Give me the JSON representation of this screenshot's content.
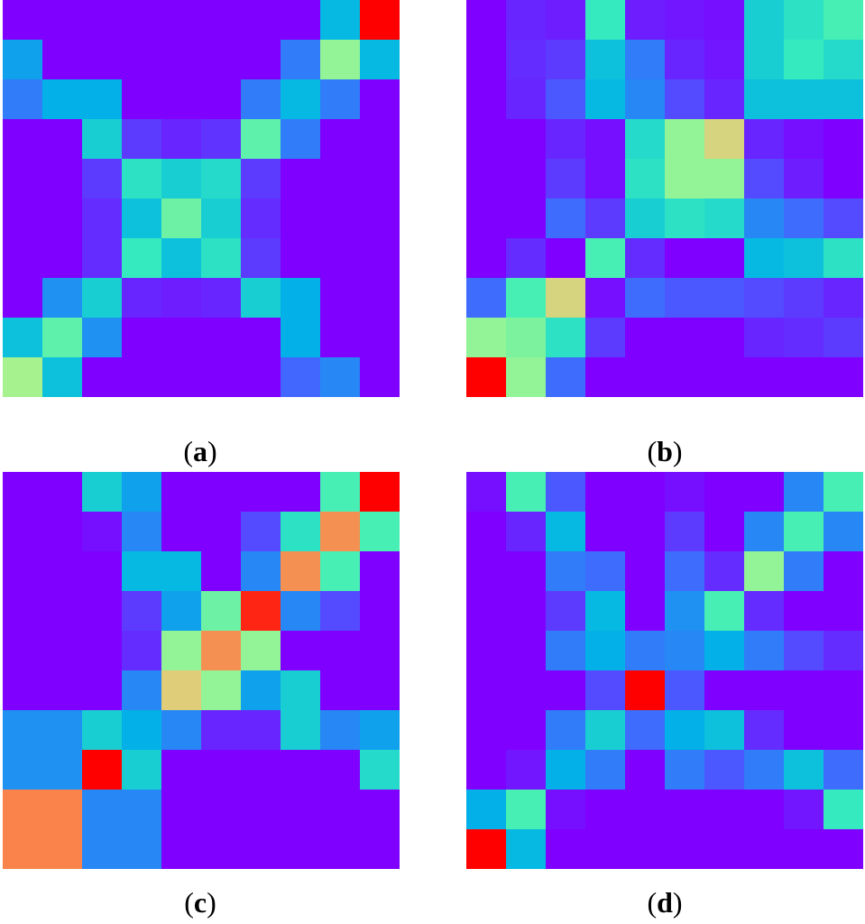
{
  "colormap": [
    "#7f00ff",
    "#4169ff",
    "#00b3e6",
    "#38eebb",
    "#a2f58f",
    "#e7c978",
    "#ff6a3a",
    "#ff0000"
  ],
  "chart_data": [
    {
      "type": "heatmap",
      "panel": "a",
      "caption": {
        "open": "(",
        "letter": "a",
        "close": ")"
      },
      "values": [
        [
          0.0,
          0.0,
          0.0,
          0.0,
          0.0,
          0.0,
          0.0,
          0.0,
          0.3,
          1.0
        ],
        [
          0.25,
          0.0,
          0.0,
          0.0,
          0.0,
          0.0,
          0.0,
          0.18,
          0.55,
          0.3
        ],
        [
          0.18,
          0.28,
          0.28,
          0.0,
          0.0,
          0.0,
          0.18,
          0.3,
          0.18,
          0.0
        ],
        [
          0.0,
          0.0,
          0.35,
          0.08,
          0.05,
          0.07,
          0.48,
          0.18,
          0.0,
          0.0
        ],
        [
          0.0,
          0.0,
          0.08,
          0.4,
          0.35,
          0.38,
          0.08,
          0.0,
          0.0,
          0.0
        ],
        [
          0.0,
          0.0,
          0.06,
          0.32,
          0.5,
          0.35,
          0.06,
          0.0,
          0.0,
          0.0
        ],
        [
          0.0,
          0.0,
          0.06,
          0.42,
          0.32,
          0.4,
          0.08,
          0.0,
          0.0,
          0.0
        ],
        [
          0.0,
          0.22,
          0.35,
          0.05,
          0.04,
          0.05,
          0.35,
          0.28,
          0.0,
          0.0
        ],
        [
          0.32,
          0.48,
          0.22,
          0.0,
          0.0,
          0.0,
          0.0,
          0.28,
          0.0,
          0.0
        ],
        [
          0.58,
          0.32,
          0.0,
          0.0,
          0.0,
          0.0,
          0.0,
          0.14,
          0.2,
          0.0
        ]
      ]
    },
    {
      "type": "heatmap",
      "panel": "b",
      "caption": {
        "open": "(",
        "letter": "b",
        "close": ")"
      },
      "values": [
        [
          0.0,
          0.05,
          0.04,
          0.42,
          0.04,
          0.03,
          0.02,
          0.35,
          0.4,
          0.45
        ],
        [
          0.0,
          0.06,
          0.08,
          0.32,
          0.18,
          0.05,
          0.03,
          0.35,
          0.42,
          0.38
        ],
        [
          0.0,
          0.05,
          0.12,
          0.3,
          0.2,
          0.1,
          0.05,
          0.32,
          0.32,
          0.32
        ],
        [
          0.0,
          0.0,
          0.05,
          0.02,
          0.38,
          0.55,
          0.68,
          0.05,
          0.02,
          0.0
        ],
        [
          0.0,
          0.0,
          0.08,
          0.02,
          0.4,
          0.55,
          0.55,
          0.1,
          0.04,
          0.0
        ],
        [
          0.0,
          0.0,
          0.15,
          0.08,
          0.35,
          0.4,
          0.38,
          0.2,
          0.15,
          0.1
        ],
        [
          0.0,
          0.06,
          0.0,
          0.45,
          0.06,
          0.0,
          0.0,
          0.3,
          0.32,
          0.4
        ],
        [
          0.15,
          0.45,
          0.68,
          0.02,
          0.15,
          0.12,
          0.12,
          0.1,
          0.08,
          0.05
        ],
        [
          0.55,
          0.52,
          0.4,
          0.08,
          0.0,
          0.0,
          0.0,
          0.05,
          0.06,
          0.08
        ],
        [
          1.0,
          0.55,
          0.15,
          0.0,
          0.0,
          0.0,
          0.0,
          0.0,
          0.0,
          0.0
        ]
      ]
    },
    {
      "type": "heatmap",
      "panel": "c",
      "caption": {
        "open": "(",
        "letter": "c",
        "close": ")"
      },
      "values": [
        [
          0.0,
          0.0,
          0.35,
          0.25,
          0.0,
          0.0,
          0.0,
          0.0,
          0.45,
          1.0
        ],
        [
          0.0,
          0.0,
          0.02,
          0.2,
          0.0,
          0.0,
          0.1,
          0.4,
          0.8,
          0.45
        ],
        [
          0.0,
          0.0,
          0.0,
          0.3,
          0.3,
          0.0,
          0.2,
          0.8,
          0.45,
          0.0
        ],
        [
          0.0,
          0.0,
          0.0,
          0.08,
          0.25,
          0.5,
          0.95,
          0.2,
          0.1,
          0.0
        ],
        [
          0.0,
          0.0,
          0.0,
          0.06,
          0.55,
          0.8,
          0.55,
          0.0,
          0.0,
          0.0
        ],
        [
          0.0,
          0.0,
          0.0,
          0.2,
          0.7,
          0.55,
          0.25,
          0.35,
          0.0,
          0.0
        ],
        [
          0.22,
          0.22,
          0.35,
          0.28,
          0.2,
          0.05,
          0.05,
          0.35,
          0.2,
          0.25
        ],
        [
          0.22,
          0.22,
          1.0,
          0.35,
          0.0,
          0.0,
          0.0,
          0.0,
          0.0,
          0.38
        ],
        [
          0.82,
          0.82,
          0.2,
          0.2,
          0.0,
          0.0,
          0.0,
          0.0,
          0.0,
          0.0
        ],
        [
          0.82,
          0.82,
          0.2,
          0.2,
          0.0,
          0.0,
          0.0,
          0.0,
          0.0,
          0.0
        ]
      ]
    },
    {
      "type": "heatmap",
      "panel": "d",
      "caption": {
        "open": "(",
        "letter": "d",
        "close": ")"
      },
      "values": [
        [
          0.02,
          0.45,
          0.12,
          0.0,
          0.0,
          0.02,
          0.0,
          0.0,
          0.2,
          0.45
        ],
        [
          0.0,
          0.05,
          0.3,
          0.0,
          0.0,
          0.08,
          0.0,
          0.2,
          0.45,
          0.2
        ],
        [
          0.0,
          0.0,
          0.18,
          0.15,
          0.0,
          0.15,
          0.06,
          0.55,
          0.18,
          0.0
        ],
        [
          0.0,
          0.0,
          0.08,
          0.3,
          0.0,
          0.22,
          0.45,
          0.06,
          0.0,
          0.0
        ],
        [
          0.0,
          0.0,
          0.18,
          0.28,
          0.18,
          0.2,
          0.28,
          0.18,
          0.1,
          0.06
        ],
        [
          0.0,
          0.0,
          0.0,
          0.1,
          1.0,
          0.12,
          0.0,
          0.0,
          0.0,
          0.0
        ],
        [
          0.0,
          0.0,
          0.18,
          0.35,
          0.15,
          0.28,
          0.32,
          0.06,
          0.0,
          0.0
        ],
        [
          0.0,
          0.03,
          0.28,
          0.18,
          0.0,
          0.18,
          0.12,
          0.18,
          0.32,
          0.15
        ],
        [
          0.28,
          0.45,
          0.02,
          0.0,
          0.0,
          0.0,
          0.0,
          0.0,
          0.03,
          0.42
        ],
        [
          1.0,
          0.3,
          0.0,
          0.0,
          0.0,
          0.0,
          0.0,
          0.0,
          0.0,
          0.0
        ]
      ]
    }
  ]
}
